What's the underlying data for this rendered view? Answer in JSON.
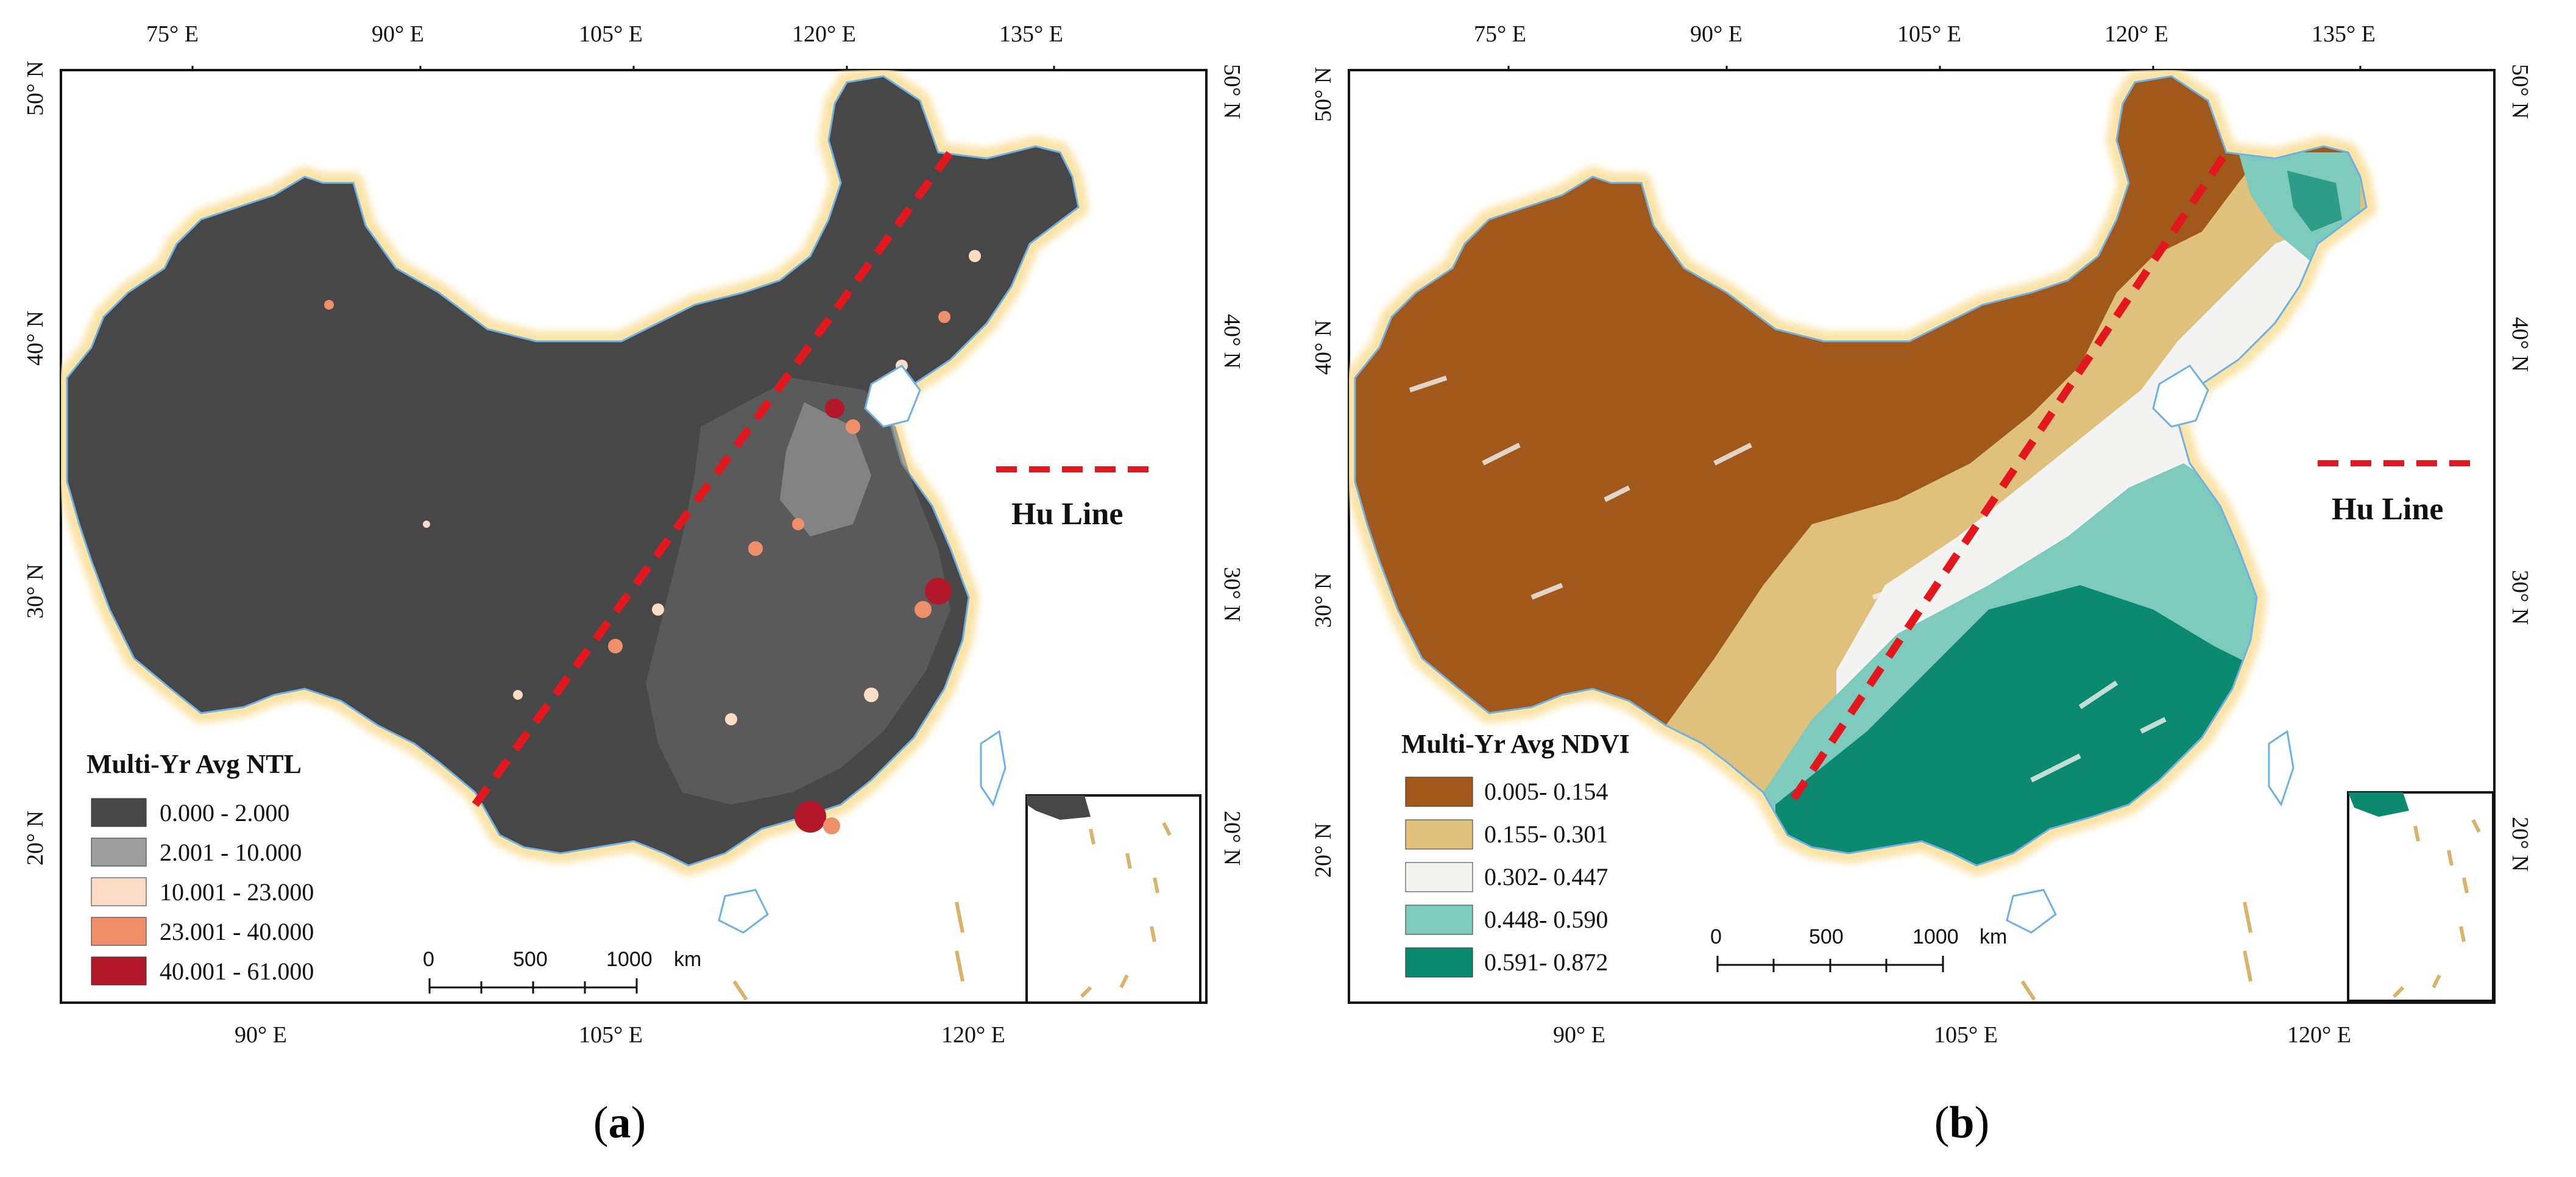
{
  "panels": [
    {
      "id": "a",
      "caption_letter": "a",
      "top_ticks": [
        "75° E",
        "90° E",
        "105° E",
        "120° E",
        "135° E"
      ],
      "bottom_ticks": [
        "90° E",
        "105° E",
        "120° E"
      ],
      "left_ticks": [
        "50° N",
        "40° N",
        "30° N",
        "20° N"
      ],
      "right_ticks": [
        "50° N",
        "40° N",
        "30° N",
        "20° N"
      ],
      "legend": {
        "title": "Multi-Yr Avg NTL",
        "items": [
          {
            "label": "0.000  - 2.000",
            "color": "#474747"
          },
          {
            "label": "2.001  - 10.000",
            "color": "#9e9e9e"
          },
          {
            "label": "10.001  - 23.000",
            "color": "#fcdcc6"
          },
          {
            "label": "23.001  - 40.000",
            "color": "#f0906a"
          },
          {
            "label": "40.001  - 61.000",
            "color": "#b3172a"
          }
        ]
      },
      "hu_line_label": "Hu Line",
      "scale": {
        "labels": [
          "0",
          "500",
          "1000"
        ],
        "unit": "km"
      }
    },
    {
      "id": "b",
      "caption_letter": "b",
      "top_ticks": [
        "75° E",
        "90° E",
        "105° E",
        "120° E",
        "135° E"
      ],
      "bottom_ticks": [
        "90° E",
        "105° E",
        "120° E"
      ],
      "left_ticks": [
        "50° N",
        "40° N",
        "30° N",
        "20° N"
      ],
      "right_ticks": [
        "50° N",
        "40° N",
        "30° N",
        "20° N"
      ],
      "legend": {
        "title": "Multi-Yr Avg NDVI",
        "items": [
          {
            "label": "0.005- 0.154",
            "color": "#a0591a"
          },
          {
            "label": "0.155- 0.301",
            "color": "#dfc07c"
          },
          {
            "label": "0.302- 0.447",
            "color": "#f3f3f1"
          },
          {
            "label": "0.448- 0.590",
            "color": "#7ecbbd"
          },
          {
            "label": "0.591- 0.872",
            "color": "#0b8a6f"
          }
        ]
      },
      "hu_line_label": "Hu Line",
      "scale": {
        "labels": [
          "0",
          "500",
          "1000"
        ],
        "unit": "km"
      }
    }
  ],
  "colors": {
    "frame": "#111111",
    "hu_line": "#e3181f",
    "coast_glow": "#fbe3a6",
    "coast_line": "#6fb1e6",
    "ntl_base": "#474747",
    "ndvi_north": "#a0591a"
  }
}
